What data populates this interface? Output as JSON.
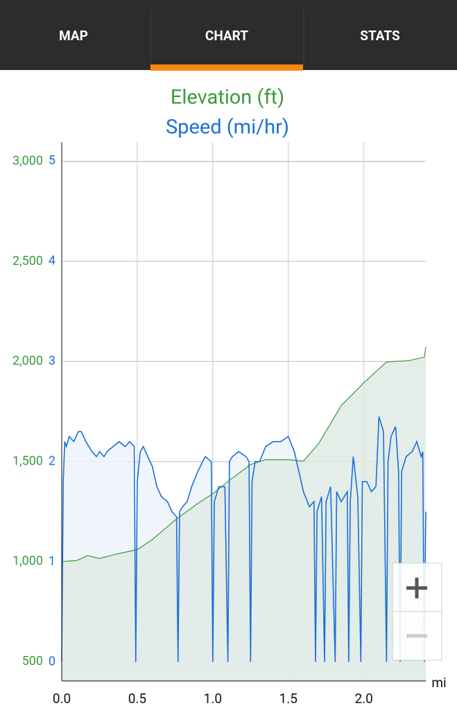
{
  "tabs": [
    "MAP",
    "CHART",
    "STATS"
  ],
  "active_tab": 1,
  "chart_data": {
    "type": "line",
    "x_label": "mi",
    "grid": true,
    "xlim": [
      0,
      2.41
    ],
    "xticks": [
      {
        "value": 0,
        "label": "0.0"
      },
      {
        "value": 0.5,
        "label": "0.5"
      },
      {
        "value": 1,
        "label": "1.0"
      },
      {
        "value": 1.5,
        "label": "1.5"
      },
      {
        "value": 2,
        "label": "2.0"
      }
    ],
    "ylim": [
      403,
      3097
    ],
    "yticks": [
      500,
      {
        "value": 1000,
        "label": "1,000"
      },
      {
        "value": 1500,
        "label": "1,500"
      },
      {
        "value": 2000,
        "label": "2,000"
      },
      {
        "value": 2500,
        "label": "2,500"
      },
      {
        "value": 3000,
        "label": "3,000"
      }
    ],
    "y2lim": [
      -0.19,
      5.19
    ],
    "y2ticks": [
      0,
      1,
      2,
      3,
      4,
      5
    ],
    "series": [
      {
        "name": "Elevation (ft)",
        "color": "#3a9a3a",
        "fill": "#dfeae4",
        "axis": "y",
        "x": [
          0,
          0.1,
          0.17,
          0.25,
          0.35,
          0.5,
          0.6,
          0.75,
          0.9,
          1.0,
          1.1,
          1.25,
          1.35,
          1.5,
          1.6,
          1.7,
          1.85,
          2.0,
          2.15,
          2.3,
          2.4,
          2.41
        ],
        "values": [
          1000,
          1005,
          1030,
          1015,
          1035,
          1060,
          1110,
          1207,
          1290,
          1339,
          1400,
          1485,
          1510,
          1509,
          1502,
          1589,
          1780,
          1894,
          1998,
          2005,
          2022,
          2074
        ]
      },
      {
        "name": "Speed (mi/hr)",
        "color": "#1a6fd8",
        "fill": "#edf3fb",
        "axis": "y2",
        "x": [
          0,
          0.01,
          0.02,
          0.03,
          0.05,
          0.08,
          0.11,
          0.13,
          0.16,
          0.2,
          0.23,
          0.25,
          0.28,
          0.3,
          0.34,
          0.38,
          0.42,
          0.45,
          0.48,
          0.49,
          0.5,
          0.52,
          0.54,
          0.57,
          0.6,
          0.63,
          0.66,
          0.7,
          0.73,
          0.76,
          0.77,
          0.78,
          0.8,
          0.83,
          0.86,
          0.9,
          0.95,
          0.99,
          1.0,
          1.01,
          1.04,
          1.08,
          1.1,
          1.11,
          1.13,
          1.17,
          1.22,
          1.24,
          1.25,
          1.26,
          1.28,
          1.31,
          1.35,
          1.4,
          1.45,
          1.5,
          1.54,
          1.57,
          1.6,
          1.64,
          1.67,
          1.68,
          1.69,
          1.72,
          1.74,
          1.75,
          1.78,
          1.81,
          1.82,
          1.85,
          1.89,
          1.9,
          1.91,
          1.93,
          1.96,
          1.98,
          1.99,
          2.02,
          2.05,
          2.08,
          2.1,
          2.13,
          2.15,
          2.16,
          2.18,
          2.21,
          2.23,
          2.24,
          2.25,
          2.28,
          2.32,
          2.35,
          2.38,
          2.39,
          2.4,
          2.41
        ],
        "values": [
          0,
          1.8,
          2.2,
          2.15,
          2.25,
          2.2,
          2.3,
          2.3,
          2.2,
          2.1,
          2.05,
          2.1,
          2.05,
          2.1,
          2.15,
          2.2,
          2.15,
          2.2,
          2.15,
          0,
          1.8,
          2.1,
          2.15,
          2.05,
          1.95,
          1.75,
          1.65,
          1.6,
          1.5,
          1.45,
          0,
          1.5,
          1.55,
          1.6,
          1.75,
          1.9,
          2.05,
          2.0,
          0,
          1.6,
          1.75,
          1.75,
          0,
          2.0,
          2.05,
          2.1,
          2.05,
          2.0,
          0,
          1.8,
          2.0,
          2.0,
          2.15,
          2.2,
          2.2,
          2.25,
          2.1,
          1.9,
          1.7,
          1.55,
          1.6,
          0,
          1.5,
          1.65,
          0,
          1.6,
          1.75,
          0,
          1.7,
          1.6,
          1.7,
          0,
          1.6,
          2.05,
          1.65,
          0,
          1.8,
          1.8,
          1.7,
          1.75,
          2.45,
          2.3,
          0,
          2.0,
          2.25,
          2.35,
          1.9,
          0,
          1.9,
          2.05,
          2.1,
          2.2,
          2.05,
          2.1,
          0,
          1.5
        ]
      }
    ]
  }
}
